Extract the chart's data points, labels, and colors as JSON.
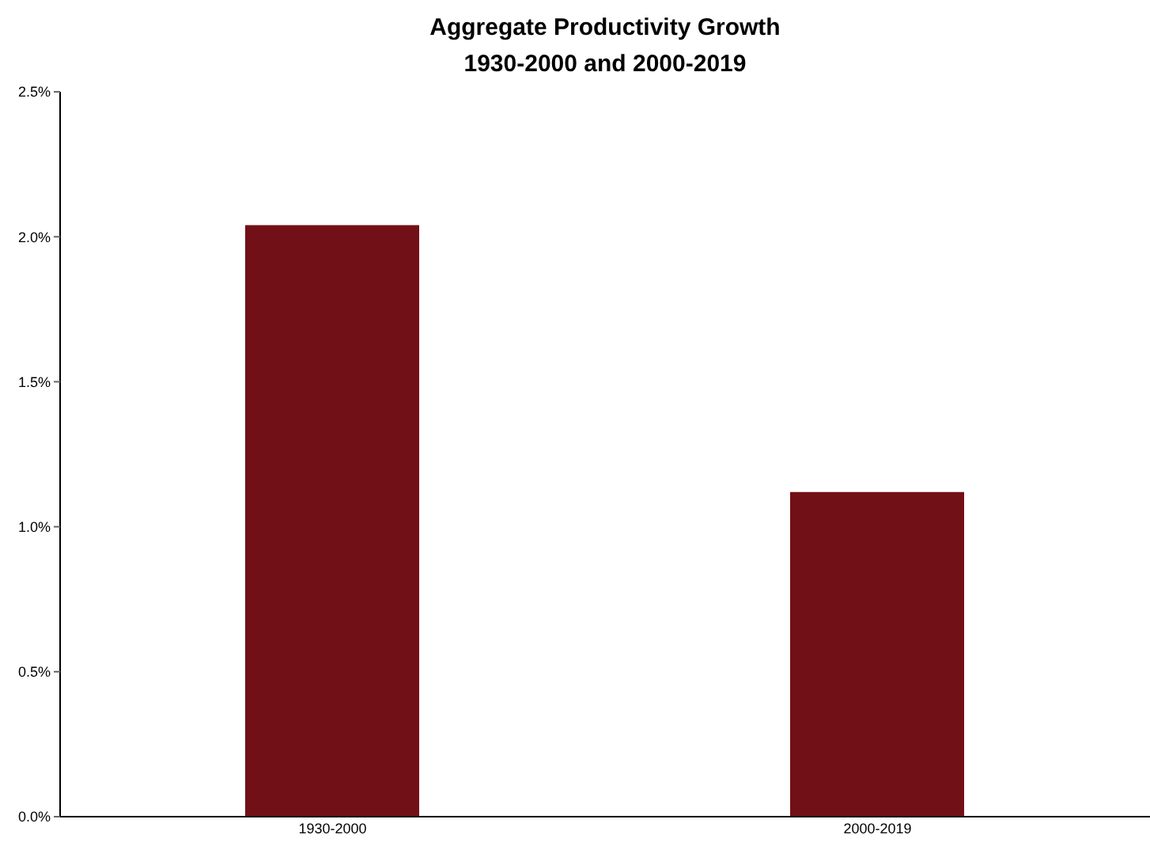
{
  "chart_data": {
    "type": "bar",
    "title": "Aggregate Productivity Growth\n1930-2000 and 2000-2019",
    "categories": [
      "1930-2000",
      "2000-2019"
    ],
    "values": [
      2.04,
      1.12
    ],
    "color": "#721017",
    "ylim": [
      0,
      2.5
    ],
    "yticks": [
      {
        "value": 0,
        "label": "0.0%"
      },
      {
        "value": 0.5,
        "label": "0.5%"
      },
      {
        "value": 1,
        "label": "1.0%"
      },
      {
        "value": 1.5,
        "label": "1.5%"
      },
      {
        "value": 2,
        "label": "2.0%"
      },
      {
        "value": 2.5,
        "label": "2.5%"
      }
    ],
    "grid": false
  }
}
